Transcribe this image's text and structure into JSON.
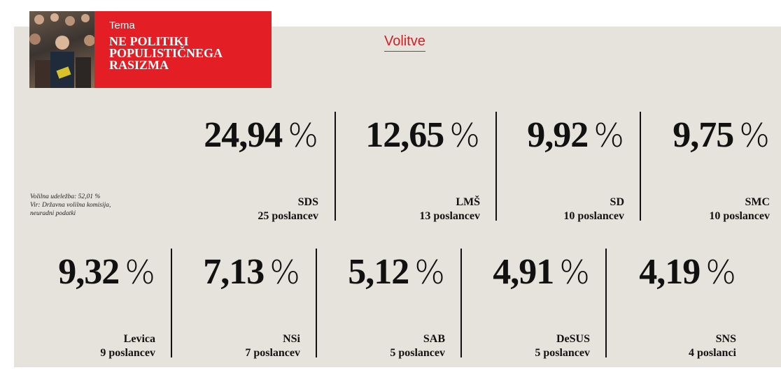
{
  "header": {
    "tema_label": "Tema",
    "topic_title": "NE POLITIKI POPULISTIČNEGA RASIZMA"
  },
  "section_label": "Volitve",
  "notes": {
    "turnout": "Volilna udeležba: 52,01 %",
    "source": "Vir: Državna volilna komisija, neuradni podatki"
  },
  "colors": {
    "accent": "#e31e25",
    "panel": "#e5e3dc"
  },
  "percent_sign": "%",
  "results": [
    {
      "party": "SDS",
      "percent": "24,94",
      "seats": "25 poslancev"
    },
    {
      "party": "LMŠ",
      "percent": "12,65",
      "seats": "13 poslancev"
    },
    {
      "party": "SD",
      "percent": "9,92",
      "seats": "10 poslancev"
    },
    {
      "party": "SMC",
      "percent": "9,75",
      "seats": "10 poslancev"
    },
    {
      "party": "Levica",
      "percent": "9,32",
      "seats": "9 poslancev"
    },
    {
      "party": "NSi",
      "percent": "7,13",
      "seats": "7 poslancev"
    },
    {
      "party": "SAB",
      "percent": "5,12",
      "seats": "5 poslancev"
    },
    {
      "party": "DeSUS",
      "percent": "4,91",
      "seats": "5 poslancev"
    },
    {
      "party": "SNS",
      "percent": "4,19",
      "seats": "4 poslanci"
    }
  ]
}
